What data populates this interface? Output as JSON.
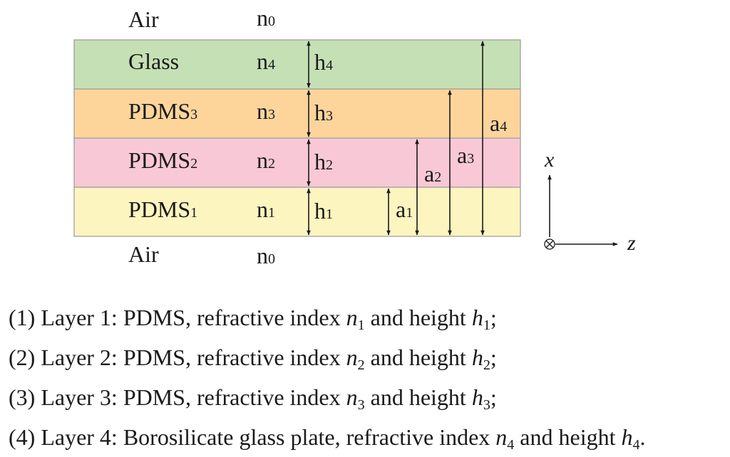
{
  "diagram": {
    "top_medium": {
      "name": "Air",
      "index": "n",
      "index_sub": "0"
    },
    "bottom_medium": {
      "name": "Air",
      "index": "n",
      "index_sub": "0"
    },
    "layers": [
      {
        "name": "Glass",
        "name_sub": "",
        "index": "n",
        "index_sub": "4",
        "thickness": "h",
        "thickness_sub": "4",
        "color": "#c5e0b4"
      },
      {
        "name": "PDMS",
        "name_sub": "3",
        "index": "n",
        "index_sub": "3",
        "thickness": "h",
        "thickness_sub": "3",
        "color": "#fdd59b"
      },
      {
        "name": "PDMS",
        "name_sub": "2",
        "index": "n",
        "index_sub": "2",
        "thickness": "h",
        "thickness_sub": "2",
        "color": "#f9c8d6"
      },
      {
        "name": "PDMS",
        "name_sub": "1",
        "index": "n",
        "index_sub": "1",
        "thickness": "h",
        "thickness_sub": "1",
        "color": "#fdf5bf"
      }
    ],
    "cumulative_heights": [
      {
        "label": "a",
        "sub": "1"
      },
      {
        "label": "a",
        "sub": "2"
      },
      {
        "label": "a",
        "sub": "3"
      },
      {
        "label": "a",
        "sub": "4"
      }
    ],
    "axes": {
      "vertical": "x",
      "horizontal": "z"
    }
  },
  "captions": [
    {
      "number": "(1)",
      "text": "Layer 1: PDMS, refractive index ",
      "var1": "n",
      "sub1": "1",
      "mid": " and height ",
      "var2": "h",
      "sub2": "1",
      "end": ";"
    },
    {
      "number": "(2)",
      "text": "Layer 2: PDMS, refractive index ",
      "var1": "n",
      "sub1": "2",
      "mid": " and height ",
      "var2": "h",
      "sub2": "2",
      "end": ";"
    },
    {
      "number": "(3)",
      "text": "Layer 3: PDMS, refractive index ",
      "var1": "n",
      "sub1": "3",
      "mid": " and height ",
      "var2": "h",
      "sub2": "3",
      "end": ";"
    },
    {
      "number": "(4)",
      "text": "Layer 4: Borosilicate glass plate, refractive index ",
      "var1": "n",
      "sub1": "4",
      "mid": " and height ",
      "var2": "h",
      "sub2": "4",
      "end": "."
    }
  ]
}
